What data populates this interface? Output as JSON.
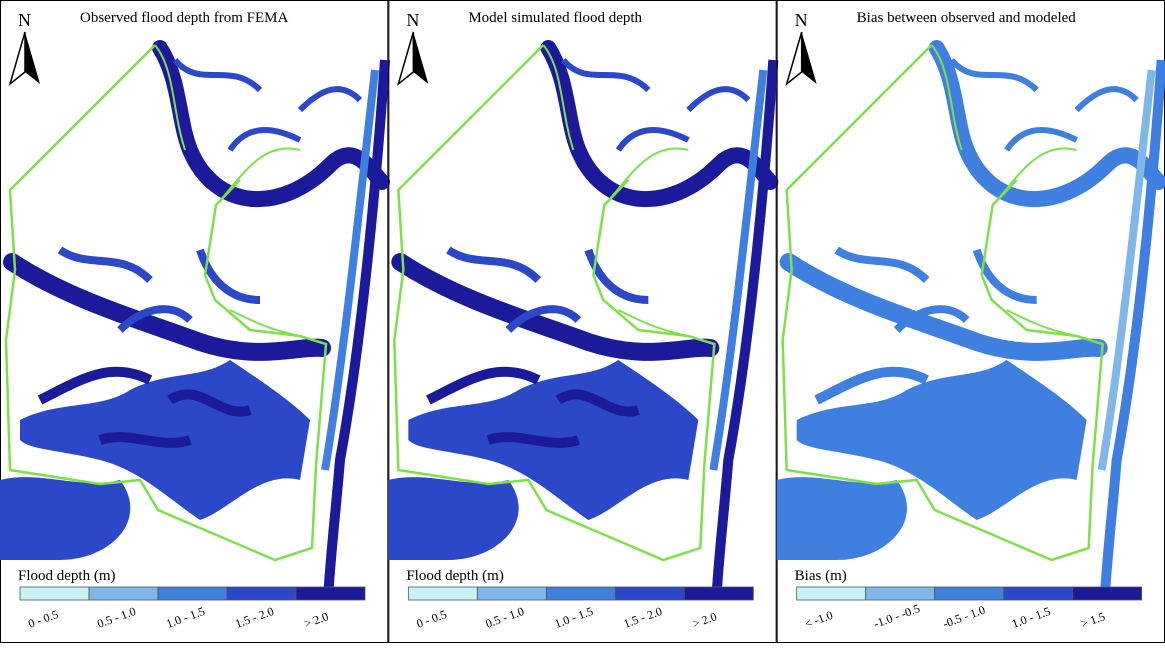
{
  "panels": [
    {
      "title": "Observed flood depth from FEMA",
      "north": "N",
      "legend": {
        "title": "Flood depth (m)",
        "labels": [
          "0 - 0.5",
          "0.5 - 1.0",
          "1.0 - 1.5",
          "1.5 - 2.0",
          "> 2.0"
        ],
        "colors": [
          "#c8f2f6",
          "#7fb8e8",
          "#3f7fe0",
          "#2a48c8",
          "#1a1a9a"
        ]
      }
    },
    {
      "title": "Model simulated flood depth",
      "north": "N",
      "legend": {
        "title": "Flood depth (m)",
        "labels": [
          "0 - 0.5",
          "0.5 - 1.0",
          "1.0 - 1.5",
          "1.5 - 2.0",
          "> 2.0"
        ],
        "colors": [
          "#c8f2f6",
          "#7fb8e8",
          "#3f7fe0",
          "#2a48c8",
          "#1a1a9a"
        ]
      }
    },
    {
      "title": "Bias between observed and modeled",
      "north": "N",
      "legend": {
        "title": "Bias (m)",
        "labels": [
          "< -1.0",
          "-1.0 - -0.5",
          "-0.5 - 1.0",
          "1.0 - 1.5",
          "> 1.5"
        ],
        "colors": [
          "#c8f2f6",
          "#7fb8e8",
          "#3f7fe0",
          "#2a48c8",
          "#1a1a9a"
        ]
      }
    }
  ]
}
